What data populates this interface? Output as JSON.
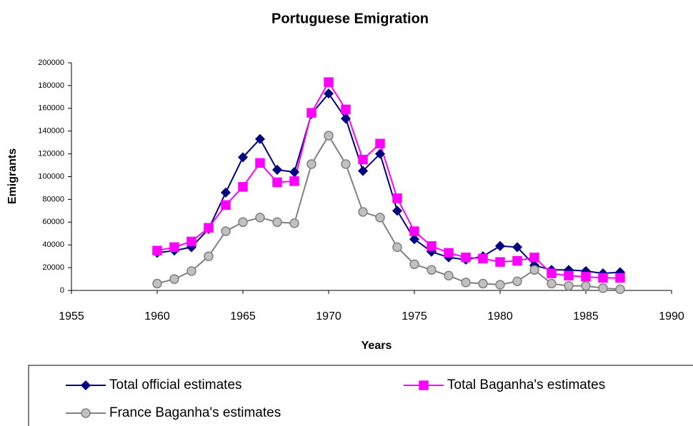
{
  "chart_data": {
    "type": "line",
    "title": "Portuguese Emigration",
    "x_label": "Years",
    "y_label": "Emigrants",
    "x": [
      1960,
      1961,
      1962,
      1963,
      1964,
      1965,
      1966,
      1967,
      1968,
      1969,
      1970,
      1971,
      1972,
      1973,
      1974,
      1975,
      1976,
      1977,
      1978,
      1979,
      1980,
      1981,
      1982,
      1983,
      1984,
      1985,
      1986,
      1987
    ],
    "series": [
      {
        "name": "Total official estimates",
        "color": "#000080",
        "marker": "diamond",
        "values": [
          33000,
          35000,
          38000,
          54000,
          86000,
          117000,
          133000,
          106000,
          104000,
          155000,
          173000,
          151000,
          105000,
          120000,
          70000,
          45000,
          34000,
          29000,
          27000,
          30000,
          39000,
          38000,
          22000,
          18000,
          18000,
          17000,
          15000,
          16000
        ]
      },
      {
        "name": "Total Baganha's estimates",
        "color": "#ff00ff",
        "marker": "square",
        "values": [
          35000,
          38000,
          43000,
          55000,
          75000,
          91000,
          112000,
          95000,
          96000,
          156000,
          183000,
          159000,
          115000,
          129000,
          81000,
          52000,
          39000,
          33000,
          29000,
          28000,
          25000,
          26000,
          29000,
          15000,
          13000,
          12000,
          11000,
          11000
        ]
      },
      {
        "name": "France Baganha's estimates",
        "color": "#808080",
        "marker": "circle",
        "values": [
          6000,
          10000,
          17000,
          30000,
          52000,
          60000,
          64000,
          60000,
          59000,
          111000,
          136000,
          111000,
          69000,
          64000,
          38000,
          23000,
          18000,
          13000,
          7000,
          6000,
          5000,
          8000,
          18000,
          6000,
          4000,
          4000,
          2000,
          1000
        ]
      }
    ],
    "xlim": [
      1955,
      1990
    ],
    "xticks": [
      1955,
      1960,
      1965,
      1970,
      1975,
      1980,
      1985,
      1990
    ],
    "ylim": [
      0,
      200000
    ],
    "yticks": [
      0,
      20000,
      40000,
      60000,
      80000,
      100000,
      120000,
      140000,
      160000,
      180000,
      200000
    ],
    "legend": "bottom"
  }
}
